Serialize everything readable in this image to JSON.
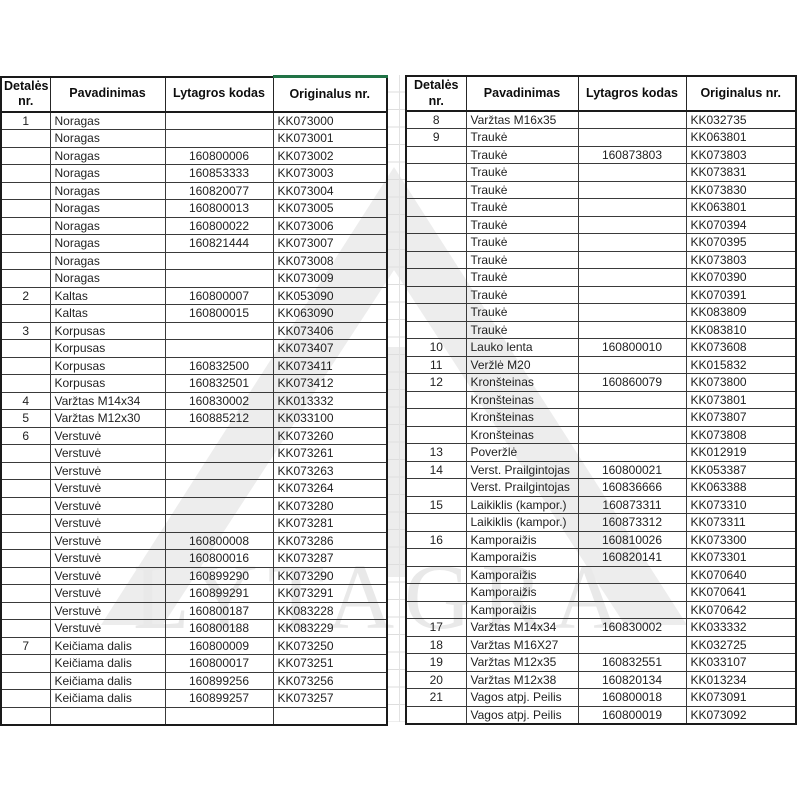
{
  "page": {
    "background": "#ffffff"
  },
  "watermark": {
    "text": "LYTAGRA",
    "logo": "lytagra-triangle-logo",
    "logo_color": "#ededed",
    "text_color": "#e9e9e9"
  },
  "selection": {
    "color": "#217346",
    "target": "left-table Originalus nr. header top border"
  },
  "tables": [
    {
      "id": "left",
      "headers": [
        "Detalės nr.",
        "Pavadinimas",
        "Lytagros kodas",
        "Originalus nr."
      ],
      "rows": [
        [
          "1",
          "Noragas",
          "",
          "KK073000"
        ],
        [
          "",
          "Noragas",
          "",
          "KK073001"
        ],
        [
          "",
          "Noragas",
          "160800006",
          "KK073002"
        ],
        [
          "",
          "Noragas",
          "160853333",
          "KK073003"
        ],
        [
          "",
          "Noragas",
          "160820077",
          "KK073004"
        ],
        [
          "",
          "Noragas",
          "160800013",
          "KK073005"
        ],
        [
          "",
          "Noragas",
          "160800022",
          "KK073006"
        ],
        [
          "",
          "Noragas",
          "160821444",
          "KK073007"
        ],
        [
          "",
          "Noragas",
          "",
          "KK073008"
        ],
        [
          "",
          "Noragas",
          "",
          "KK073009"
        ],
        [
          "2",
          "Kaltas",
          "160800007",
          "KK053090"
        ],
        [
          "",
          "Kaltas",
          "160800015",
          "KK063090"
        ],
        [
          "3",
          "Korpusas",
          "",
          "KK073406"
        ],
        [
          "",
          "Korpusas",
          "",
          "KK073407"
        ],
        [
          "",
          "Korpusas",
          "160832500",
          "KK073411"
        ],
        [
          "",
          "Korpusas",
          "160832501",
          "KK073412"
        ],
        [
          "4",
          "Varžtas M14x34",
          "160830002",
          "KK013332"
        ],
        [
          "5",
          "Varžtas M12x30",
          "160885212",
          "KK033100"
        ],
        [
          "6",
          "Verstuvė",
          "",
          "KK073260"
        ],
        [
          "",
          "Verstuvė",
          "",
          "KK073261"
        ],
        [
          "",
          "Verstuvė",
          "",
          "KK073263"
        ],
        [
          "",
          "Verstuvė",
          "",
          "KK073264"
        ],
        [
          "",
          "Verstuvė",
          "",
          "KK073280"
        ],
        [
          "",
          "Verstuvė",
          "",
          "KK073281"
        ],
        [
          "",
          "Verstuvė",
          "160800008",
          "KK073286"
        ],
        [
          "",
          "Verstuvė",
          "160800016",
          "KK073287"
        ],
        [
          "",
          "Verstuvė",
          "160899290",
          "KK073290"
        ],
        [
          "",
          "Verstuvė",
          "160899291",
          "KK073291"
        ],
        [
          "",
          "Verstuvė",
          "160800187",
          "KK083228"
        ],
        [
          "",
          "Verstuvė",
          "160800188",
          "KK083229"
        ],
        [
          "7",
          "Keičiama dalis",
          "160800009",
          "KK073250"
        ],
        [
          "",
          "Keičiama dalis",
          "160800017",
          "KK073251"
        ],
        [
          "",
          "Keičiama dalis",
          "160899256",
          "KK073256"
        ],
        [
          "",
          "Keičiama dalis",
          "160899257",
          "KK073257"
        ],
        [
          "",
          "",
          "",
          ""
        ]
      ]
    },
    {
      "id": "right",
      "headers": [
        "Detalės nr.",
        "Pavadinimas",
        "Lytagros kodas",
        "Originalus nr."
      ],
      "rows": [
        [
          "8",
          "Varžtas M16x35",
          "",
          "KK032735"
        ],
        [
          "9",
          "Traukė",
          "",
          "KK063801"
        ],
        [
          "",
          "Traukė",
          "160873803",
          "KK073803"
        ],
        [
          "",
          "Traukė",
          "",
          "KK073831"
        ],
        [
          "",
          "Traukė",
          "",
          "KK073830"
        ],
        [
          "",
          "Traukė",
          "",
          "KK063801"
        ],
        [
          "",
          "Traukė",
          "",
          "KK070394"
        ],
        [
          "",
          "Traukė",
          "",
          "KK070395"
        ],
        [
          "",
          "Traukė",
          "",
          "KK073803"
        ],
        [
          "",
          "Traukė",
          "",
          "KK070390"
        ],
        [
          "",
          "Traukė",
          "",
          "KK070391"
        ],
        [
          "",
          "Traukė",
          "",
          "KK083809"
        ],
        [
          "",
          "Traukė",
          "",
          "KK083810"
        ],
        [
          "10",
          "Lauko lenta",
          "160800010",
          "KK073608"
        ],
        [
          "11",
          "Veržlė M20",
          "",
          "KK015832"
        ],
        [
          "12",
          "Kronšteinas",
          "160860079",
          "KK073800"
        ],
        [
          "",
          "Kronšteinas",
          "",
          "KK073801"
        ],
        [
          "",
          "Kronšteinas",
          "",
          "KK073807"
        ],
        [
          "",
          "Kronšteinas",
          "",
          "KK073808"
        ],
        [
          "13",
          "Poveržlė",
          "",
          "KK012919"
        ],
        [
          "14",
          "Verst. Prailgintojas",
          "160800021",
          "KK053387"
        ],
        [
          "",
          "Verst. Prailgintojas",
          "160836666",
          "KK063388"
        ],
        [
          "15",
          "Laikiklis (kampor.)",
          "160873311",
          "KK073310"
        ],
        [
          "",
          "Laikiklis (kampor.)",
          "160873312",
          "KK073311"
        ],
        [
          "16",
          "Kamporaižis",
          "160810026",
          "KK073300"
        ],
        [
          "",
          "Kamporaižis",
          "160820141",
          "KK073301"
        ],
        [
          "",
          "Kamporaižis",
          "",
          "KK070640"
        ],
        [
          "",
          "Kamporaižis",
          "",
          "KK070641"
        ],
        [
          "",
          "Kamporaižis",
          "",
          "KK070642"
        ],
        [
          "17",
          "Varžtas M14x34",
          "160830002",
          "KK033332"
        ],
        [
          "18",
          "Varžtas M16X27",
          "",
          "KK032725"
        ],
        [
          "19",
          "Varžtas M12x35",
          "160832551",
          "KK033107"
        ],
        [
          "20",
          "Varžtas M12x38",
          "160820134",
          "KK013234"
        ],
        [
          "21",
          "Vagos atpj. Peilis",
          "160800018",
          "KK073091"
        ],
        [
          "",
          "Vagos atpj. Peilis",
          "160800019",
          "KK073092"
        ]
      ]
    }
  ]
}
